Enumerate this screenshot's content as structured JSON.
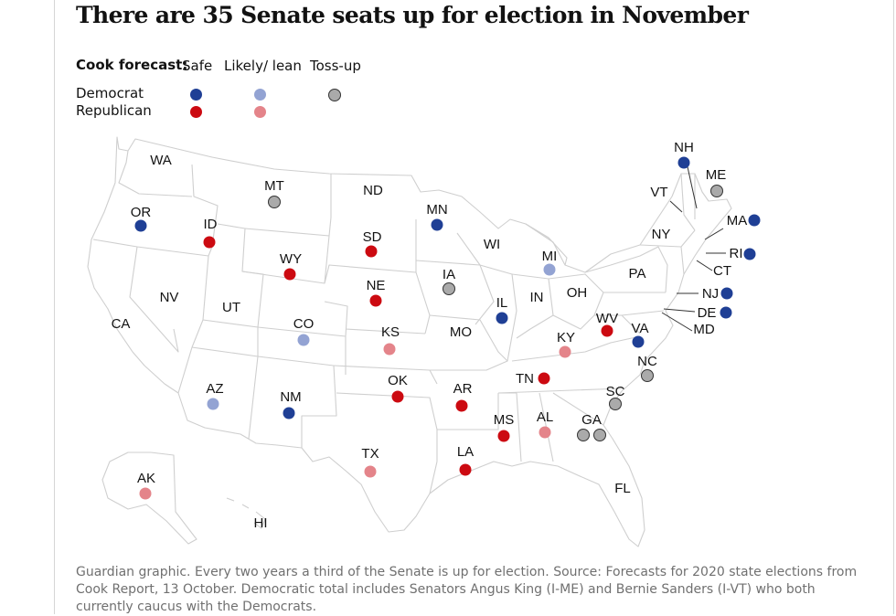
{
  "title": "There are 35 Senate seats up for election in November",
  "legend": {
    "heading": "Cook forecast:",
    "columns": [
      "Safe",
      "Likely/ lean",
      "Toss-up"
    ],
    "rows": [
      {
        "party": "Democrat",
        "colors": [
          "#1f3f95",
          "#93a3d3",
          "#aaaaaa"
        ]
      },
      {
        "party": "Republican",
        "colors": [
          "#cc0a11",
          "#e4848a"
        ]
      }
    ]
  },
  "colors": {
    "dem_safe": "#1f3f95",
    "dem_lean": "#93a3d3",
    "tossup": "#aaaaaa",
    "rep_safe": "#cc0a11",
    "rep_lean": "#e4848a"
  },
  "states": [
    {
      "label": "WA"
    },
    {
      "label": "MT"
    },
    {
      "label": "ND"
    },
    {
      "label": "MN"
    },
    {
      "label": "OR"
    },
    {
      "label": "ID"
    },
    {
      "label": "SD"
    },
    {
      "label": "WI"
    },
    {
      "label": "MI"
    },
    {
      "label": "WY"
    },
    {
      "label": "IA"
    },
    {
      "label": "NE"
    },
    {
      "label": "NV"
    },
    {
      "label": "UT"
    },
    {
      "label": "IL"
    },
    {
      "label": "IN"
    },
    {
      "label": "OH"
    },
    {
      "label": "PA"
    },
    {
      "label": "NY"
    },
    {
      "label": "VT"
    },
    {
      "label": "NH"
    },
    {
      "label": "ME"
    },
    {
      "label": "MA"
    },
    {
      "label": "RI"
    },
    {
      "label": "CT"
    },
    {
      "label": "NJ"
    },
    {
      "label": "DE"
    },
    {
      "label": "MD"
    },
    {
      "label": "CA"
    },
    {
      "label": "CO"
    },
    {
      "label": "KS"
    },
    {
      "label": "MO"
    },
    {
      "label": "KY"
    },
    {
      "label": "WV"
    },
    {
      "label": "VA"
    },
    {
      "label": "NC"
    },
    {
      "label": "TN"
    },
    {
      "label": "SC"
    },
    {
      "label": "AZ"
    },
    {
      "label": "NM"
    },
    {
      "label": "OK"
    },
    {
      "label": "AR"
    },
    {
      "label": "MS"
    },
    {
      "label": "AL"
    },
    {
      "label": "GA"
    },
    {
      "label": "TX"
    },
    {
      "label": "LA"
    },
    {
      "label": "FL"
    },
    {
      "label": "AK"
    },
    {
      "label": "HI"
    }
  ],
  "caption": "Guardian graphic. Every two years a third of the Senate is up for election. Source: Forecasts for 2020 state elections from Cook Report, 13 October. Democratic total includes Senators Angus King (I-ME) and Bernie Sanders (I-VT) who both currently caucus with the Democrats."
}
